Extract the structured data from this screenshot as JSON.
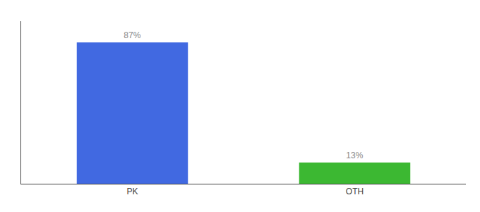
{
  "chart_data": {
    "type": "bar",
    "categories": [
      "PK",
      "OTH"
    ],
    "values": [
      87,
      13
    ],
    "value_labels": [
      "87%",
      "13%"
    ],
    "colors": [
      "#4169e1",
      "#3cb832"
    ],
    "ylim": [
      0,
      100
    ],
    "tick_labels": "x",
    "data_labels": true,
    "grid": false
  }
}
